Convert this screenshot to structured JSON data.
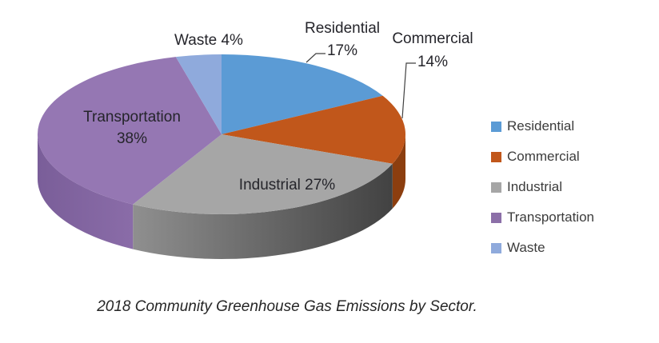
{
  "chart_data": {
    "type": "pie",
    "effect": "3d",
    "title": "2018 Community Greenhouse Gas Emissions by Sector.",
    "unit": "%",
    "categories": [
      "Residential",
      "Commercial",
      "Industrial",
      "Transportation",
      "Waste"
    ],
    "values": [
      17,
      14,
      27,
      38,
      4
    ],
    "legend_position": "right",
    "slices": [
      {
        "label": "Residential",
        "value": 17,
        "color": "#5B9BD5",
        "side_from": "#3E6E99",
        "side_to": "#3E6E99"
      },
      {
        "label": "Commercial",
        "value": 14,
        "color": "#C1571B",
        "side_from": "#8C3E0F",
        "side_to": "#8C3E0F"
      },
      {
        "label": "Industrial",
        "value": 27,
        "color": "#A6A6A6",
        "side_from": "#8F8F8F",
        "side_to": "#424242"
      },
      {
        "label": "Transportation",
        "value": 38,
        "color": "#9577B3",
        "side_from": "#7A5E99",
        "side_to": "#8A6CA8"
      },
      {
        "label": "Waste",
        "value": 4,
        "color": "#8FAADC",
        "side_from": "#6F8BC0",
        "side_to": "#6F8BC0"
      }
    ]
  },
  "labels": {
    "waste": "Waste 4%",
    "residential_name": "Residential",
    "residential_pct": "17%",
    "commercial_name": "Commercial",
    "commercial_pct": "14%",
    "industrial": "Industrial 27%",
    "transportation_name": "Transportation",
    "transportation_pct": "38%"
  },
  "legend": {
    "items": [
      {
        "label": "Residential",
        "color": "#5B9BD5"
      },
      {
        "label": "Commercial",
        "color": "#C1571B"
      },
      {
        "label": "Industrial",
        "color": "#A6A6A6"
      },
      {
        "label": "Transportation",
        "color": "#8C6FA8"
      },
      {
        "label": "Waste",
        "color": "#8FAADC"
      }
    ]
  },
  "caption": "2018 Community Greenhouse Gas Emissions by Sector."
}
